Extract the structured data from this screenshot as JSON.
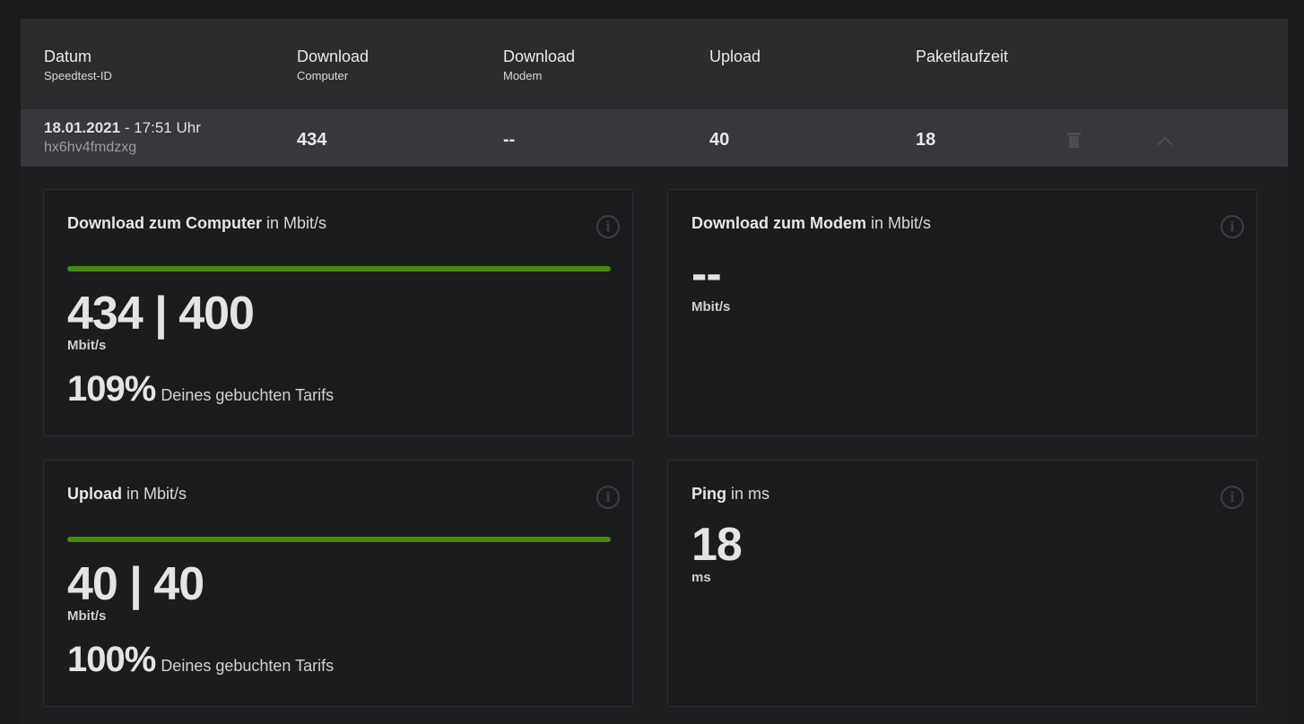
{
  "table": {
    "headers": [
      {
        "main": "Datum",
        "sub": "Speedtest-ID"
      },
      {
        "main": "Download",
        "sub": "Computer"
      },
      {
        "main": "Download",
        "sub": "Modem"
      },
      {
        "main": "Upload",
        "sub": ""
      },
      {
        "main": "Paketlaufzeit",
        "sub": ""
      }
    ],
    "row": {
      "date": "18.01.2021",
      "time": " - 17:51 Uhr",
      "id": "hx6hv4fmdzxg",
      "download_computer": "434",
      "download_modem": "--",
      "upload": "40",
      "ping": "18"
    }
  },
  "cards": {
    "download_computer": {
      "title_bold": "Download zum Computer",
      "title_rest": " in Mbit/s",
      "value": "434 | 400",
      "unit": "Mbit/s",
      "percent": "109%",
      "percent_text": "Deines gebuchten Tarifs",
      "bar_fraction": 1.0
    },
    "download_modem": {
      "title_bold": "Download zum Modem",
      "title_rest": " in Mbit/s",
      "value": "--",
      "unit": "Mbit/s"
    },
    "upload": {
      "title_bold": "Upload",
      "title_rest": " in Mbit/s",
      "value": "40 | 40",
      "unit": "Mbit/s",
      "percent": "100%",
      "percent_text": "Deines gebuchten Tarifs",
      "bar_fraction": 1.0
    },
    "ping": {
      "title_bold": "Ping",
      "title_rest": " in ms",
      "value": "18",
      "unit": "ms"
    }
  },
  "icons": {
    "info": "info-icon",
    "delete": "trash-icon",
    "collapse": "chevron-up-icon"
  },
  "colors": {
    "bar": "#4a8a12",
    "background": "#1b1c1e",
    "header": "#2a2c2e",
    "row": "#36383b"
  }
}
